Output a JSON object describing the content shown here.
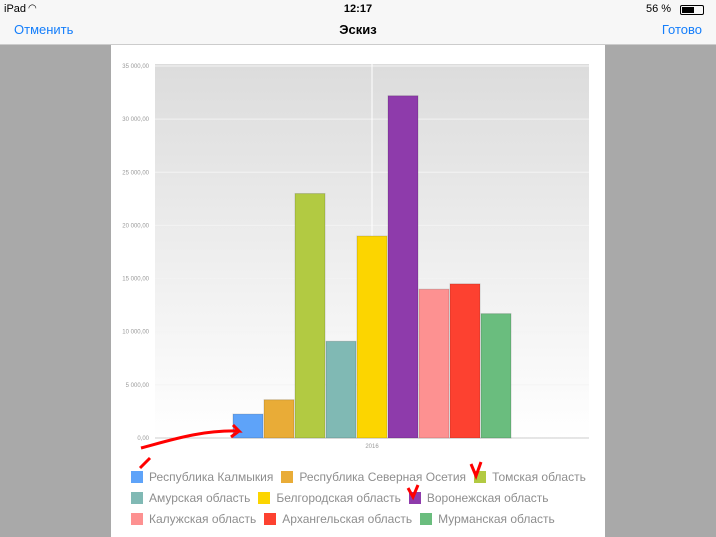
{
  "status": {
    "device": "iPad",
    "time": "12:17",
    "battery": "56 %"
  },
  "nav": {
    "cancel": "Отменить",
    "title": "Эскиз",
    "done": "Готово"
  },
  "chart_data": {
    "type": "bar",
    "categories": [
      "2016"
    ],
    "ylim": [
      0,
      35000
    ],
    "yticks": [
      "0,00",
      "5 000,00",
      "10 000,00",
      "15 000,00",
      "20 000,00",
      "25 000,00",
      "30 000,00",
      "35 000,00"
    ],
    "grid": true,
    "legend_position": "bottom",
    "series": [
      {
        "name": "Республика Калмыкия",
        "values": [
          2250
        ],
        "color": "#5ea3f9"
      },
      {
        "name": "Республика Северная Осетия",
        "values": [
          3600
        ],
        "color": "#e9ac37"
      },
      {
        "name": "Томская область",
        "values": [
          23000
        ],
        "color": "#b2ca42"
      },
      {
        "name": "Амурская область",
        "values": [
          9100
        ],
        "color": "#80b9b4"
      },
      {
        "name": "Белгородская область",
        "values": [
          19000
        ],
        "color": "#fcd500"
      },
      {
        "name": "Воронежская область",
        "values": [
          32200
        ],
        "color": "#8e3bab"
      },
      {
        "name": "Калужская область",
        "values": [
          14000
        ],
        "color": "#fd9191"
      },
      {
        "name": "Архангельская область",
        "values": [
          14500
        ],
        "color": "#fd4130"
      },
      {
        "name": "Мурманская область",
        "values": [
          11700
        ],
        "color": "#6abd7e"
      }
    ]
  }
}
